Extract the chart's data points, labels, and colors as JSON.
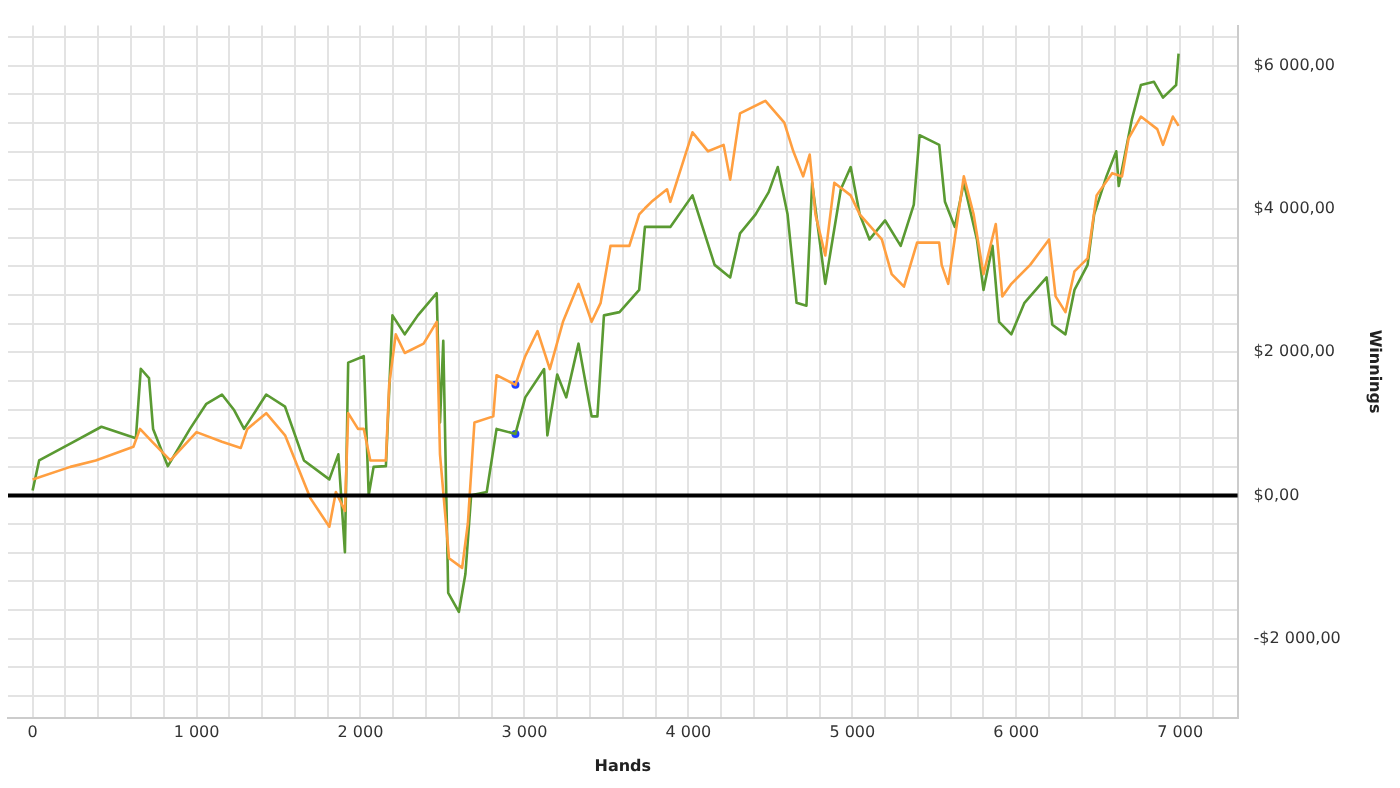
{
  "chart_data": {
    "type": "line",
    "xlabel": "Hands",
    "ylabel": "Winnings",
    "marker": "none",
    "grid": true,
    "legend": false,
    "xlim": [
      -150,
      7350
    ],
    "ylim": [
      -3100,
      6560
    ],
    "xticks": [
      {
        "value": 0,
        "label": "0"
      },
      {
        "value": 200,
        "label": null
      },
      {
        "value": 400,
        "label": null
      },
      {
        "value": 600,
        "label": null
      },
      {
        "value": 800,
        "label": null
      },
      {
        "value": 1000,
        "label": "1 000"
      },
      {
        "value": 1200,
        "label": null
      },
      {
        "value": 1400,
        "label": null
      },
      {
        "value": 1600,
        "label": null
      },
      {
        "value": 1800,
        "label": null
      },
      {
        "value": 2000,
        "label": "2 000"
      },
      {
        "value": 2200,
        "label": null
      },
      {
        "value": 2400,
        "label": null
      },
      {
        "value": 2600,
        "label": null
      },
      {
        "value": 2800,
        "label": null
      },
      {
        "value": 3000,
        "label": "3 000"
      },
      {
        "value": 3200,
        "label": null
      },
      {
        "value": 3400,
        "label": null
      },
      {
        "value": 3600,
        "label": null
      },
      {
        "value": 3800,
        "label": null
      },
      {
        "value": 4000,
        "label": "4 000"
      },
      {
        "value": 4200,
        "label": null
      },
      {
        "value": 4400,
        "label": null
      },
      {
        "value": 4600,
        "label": null
      },
      {
        "value": 4800,
        "label": null
      },
      {
        "value": 5000,
        "label": "5 000"
      },
      {
        "value": 5200,
        "label": null
      },
      {
        "value": 5400,
        "label": null
      },
      {
        "value": 5600,
        "label": null
      },
      {
        "value": 5800,
        "label": null
      },
      {
        "value": 6000,
        "label": "6 000"
      },
      {
        "value": 6200,
        "label": null
      },
      {
        "value": 6400,
        "label": null
      },
      {
        "value": 6600,
        "label": null
      },
      {
        "value": 6800,
        "label": null
      },
      {
        "value": 7000,
        "label": "7 000"
      },
      {
        "value": 7200,
        "label": null
      }
    ],
    "yticks": [
      {
        "value": -2800,
        "label": null
      },
      {
        "value": -2400,
        "label": null
      },
      {
        "value": -2000,
        "label": "-$2 000,00"
      },
      {
        "value": -1600,
        "label": null
      },
      {
        "value": -1200,
        "label": null
      },
      {
        "value": -800,
        "label": null
      },
      {
        "value": -400,
        "label": null
      },
      {
        "value": 0,
        "label": "$0,00"
      },
      {
        "value": 400,
        "label": null
      },
      {
        "value": 800,
        "label": null
      },
      {
        "value": 1200,
        "label": null
      },
      {
        "value": 1600,
        "label": null
      },
      {
        "value": 2000,
        "label": "$2 000,00"
      },
      {
        "value": 2400,
        "label": null
      },
      {
        "value": 2800,
        "label": null
      },
      {
        "value": 3200,
        "label": null
      },
      {
        "value": 3600,
        "label": null
      },
      {
        "value": 4000,
        "label": "$4 000,00"
      },
      {
        "value": 4400,
        "label": null
      },
      {
        "value": 4800,
        "label": null
      },
      {
        "value": 5200,
        "label": null
      },
      {
        "value": 5600,
        "label": null
      },
      {
        "value": 6000,
        "label": "$6 000,00"
      },
      {
        "value": 6400,
        "label": null
      }
    ],
    "ref_lines": [
      {
        "axis": "y",
        "value": 0,
        "color": "#000000"
      }
    ],
    "series": [
      {
        "color": "#ff9f40",
        "x": [
          0,
          230,
          385,
          615,
          655,
          730,
          840,
          1000,
          1155,
          1270,
          1310,
          1425,
          1540,
          1695,
          1810,
          1850,
          1905,
          1925,
          1985,
          2020,
          2060,
          2155,
          2175,
          2215,
          2270,
          2385,
          2465,
          2485,
          2540,
          2620,
          2655,
          2695,
          2810,
          2830,
          2945,
          3005,
          3080,
          3155,
          3235,
          3330,
          3410,
          3465,
          3525,
          3640,
          3700,
          3735,
          3775,
          3870,
          3890,
          4025,
          4120,
          4215,
          4255,
          4315,
          4470,
          4585,
          4640,
          4700,
          4740,
          4775,
          4835,
          4890,
          4990,
          5045,
          5180,
          5240,
          5315,
          5395,
          5530,
          5545,
          5585,
          5680,
          5740,
          5800,
          5875,
          5915,
          5970,
          6085,
          6200,
          6240,
          6300,
          6355,
          6435,
          6490,
          6585,
          6645,
          6685,
          6760,
          6860,
          6895,
          6955,
          6990
        ],
        "values": [
          225,
          400,
          490,
          680,
          930,
          750,
          490,
          885,
          750,
          665,
          930,
          1150,
          840,
          -40,
          -435,
          50,
          -215,
          1150,
          930,
          930,
          490,
          490,
          1545,
          2250,
          1990,
          2120,
          2425,
          575,
          -875,
          -1010,
          -390,
          1020,
          1105,
          1680,
          1545,
          1945,
          2295,
          1765,
          2425,
          2955,
          2425,
          2690,
          3485,
          3485,
          3925,
          4010,
          4100,
          4275,
          4100,
          5070,
          4805,
          4895,
          4410,
          5335,
          5510,
          5205,
          4805,
          4455,
          4760,
          3925,
          3350,
          4365,
          4190,
          3925,
          3575,
          3090,
          2915,
          3530,
          3530,
          3220,
          2955,
          4455,
          3925,
          3090,
          3790,
          2780,
          2955,
          3220,
          3575,
          2780,
          2560,
          3130,
          3310,
          4190,
          4500,
          4455,
          4985,
          5290,
          5115,
          4895,
          5290,
          5160
        ]
      },
      {
        "color": "#5a9a32",
        "x": [
          0,
          40,
          250,
          420,
          575,
          630,
          660,
          710,
          735,
          825,
          960,
          1060,
          1155,
          1230,
          1290,
          1425,
          1540,
          1655,
          1810,
          1865,
          1905,
          1925,
          2020,
          2050,
          2080,
          2155,
          2195,
          2270,
          2350,
          2465,
          2485,
          2505,
          2535,
          2600,
          2640,
          2675,
          2770,
          2830,
          2945,
          3005,
          3120,
          3140,
          3200,
          3255,
          3330,
          3410,
          3445,
          3485,
          3580,
          3700,
          3735,
          3890,
          4025,
          4160,
          4255,
          4315,
          4410,
          4490,
          4545,
          4605,
          4660,
          4720,
          4755,
          4835,
          4930,
          4990,
          5045,
          5105,
          5200,
          5295,
          5375,
          5410,
          5530,
          5565,
          5625,
          5680,
          5760,
          5800,
          5855,
          5895,
          5970,
          6050,
          6185,
          6220,
          6300,
          6355,
          6435,
          6475,
          6550,
          6610,
          6625,
          6705,
          6760,
          6840,
          6895,
          6975,
          6990
        ],
        "values": [
          70,
          490,
          750,
          960,
          840,
          800,
          1770,
          1640,
          930,
          410,
          930,
          1280,
          1410,
          1190,
          930,
          1410,
          1240,
          490,
          225,
          575,
          -790,
          1855,
          1945,
          5,
          400,
          410,
          2515,
          2250,
          2515,
          2825,
          1020,
          2160,
          -1360,
          -1625,
          -1095,
          5,
          50,
          930,
          860,
          1370,
          1765,
          840,
          1690,
          1370,
          2120,
          1105,
          1105,
          2515,
          2560,
          2870,
          3750,
          3750,
          4190,
          3220,
          3045,
          3660,
          3925,
          4235,
          4585,
          3925,
          2690,
          2650,
          4365,
          2955,
          4275,
          4585,
          3925,
          3575,
          3840,
          3485,
          4060,
          5030,
          4895,
          4100,
          3750,
          4365,
          3575,
          2870,
          3485,
          2425,
          2250,
          2690,
          3045,
          2385,
          2250,
          2870,
          3220,
          3925,
          4455,
          4805,
          4320,
          5250,
          5730,
          5775,
          5555,
          5730,
          6170
        ]
      },
      {
        "type": "scatter",
        "marker": "circle",
        "color": "#1f3fff",
        "x": [
          2945,
          2945
        ],
        "values": [
          1545,
          860
        ]
      }
    ]
  }
}
